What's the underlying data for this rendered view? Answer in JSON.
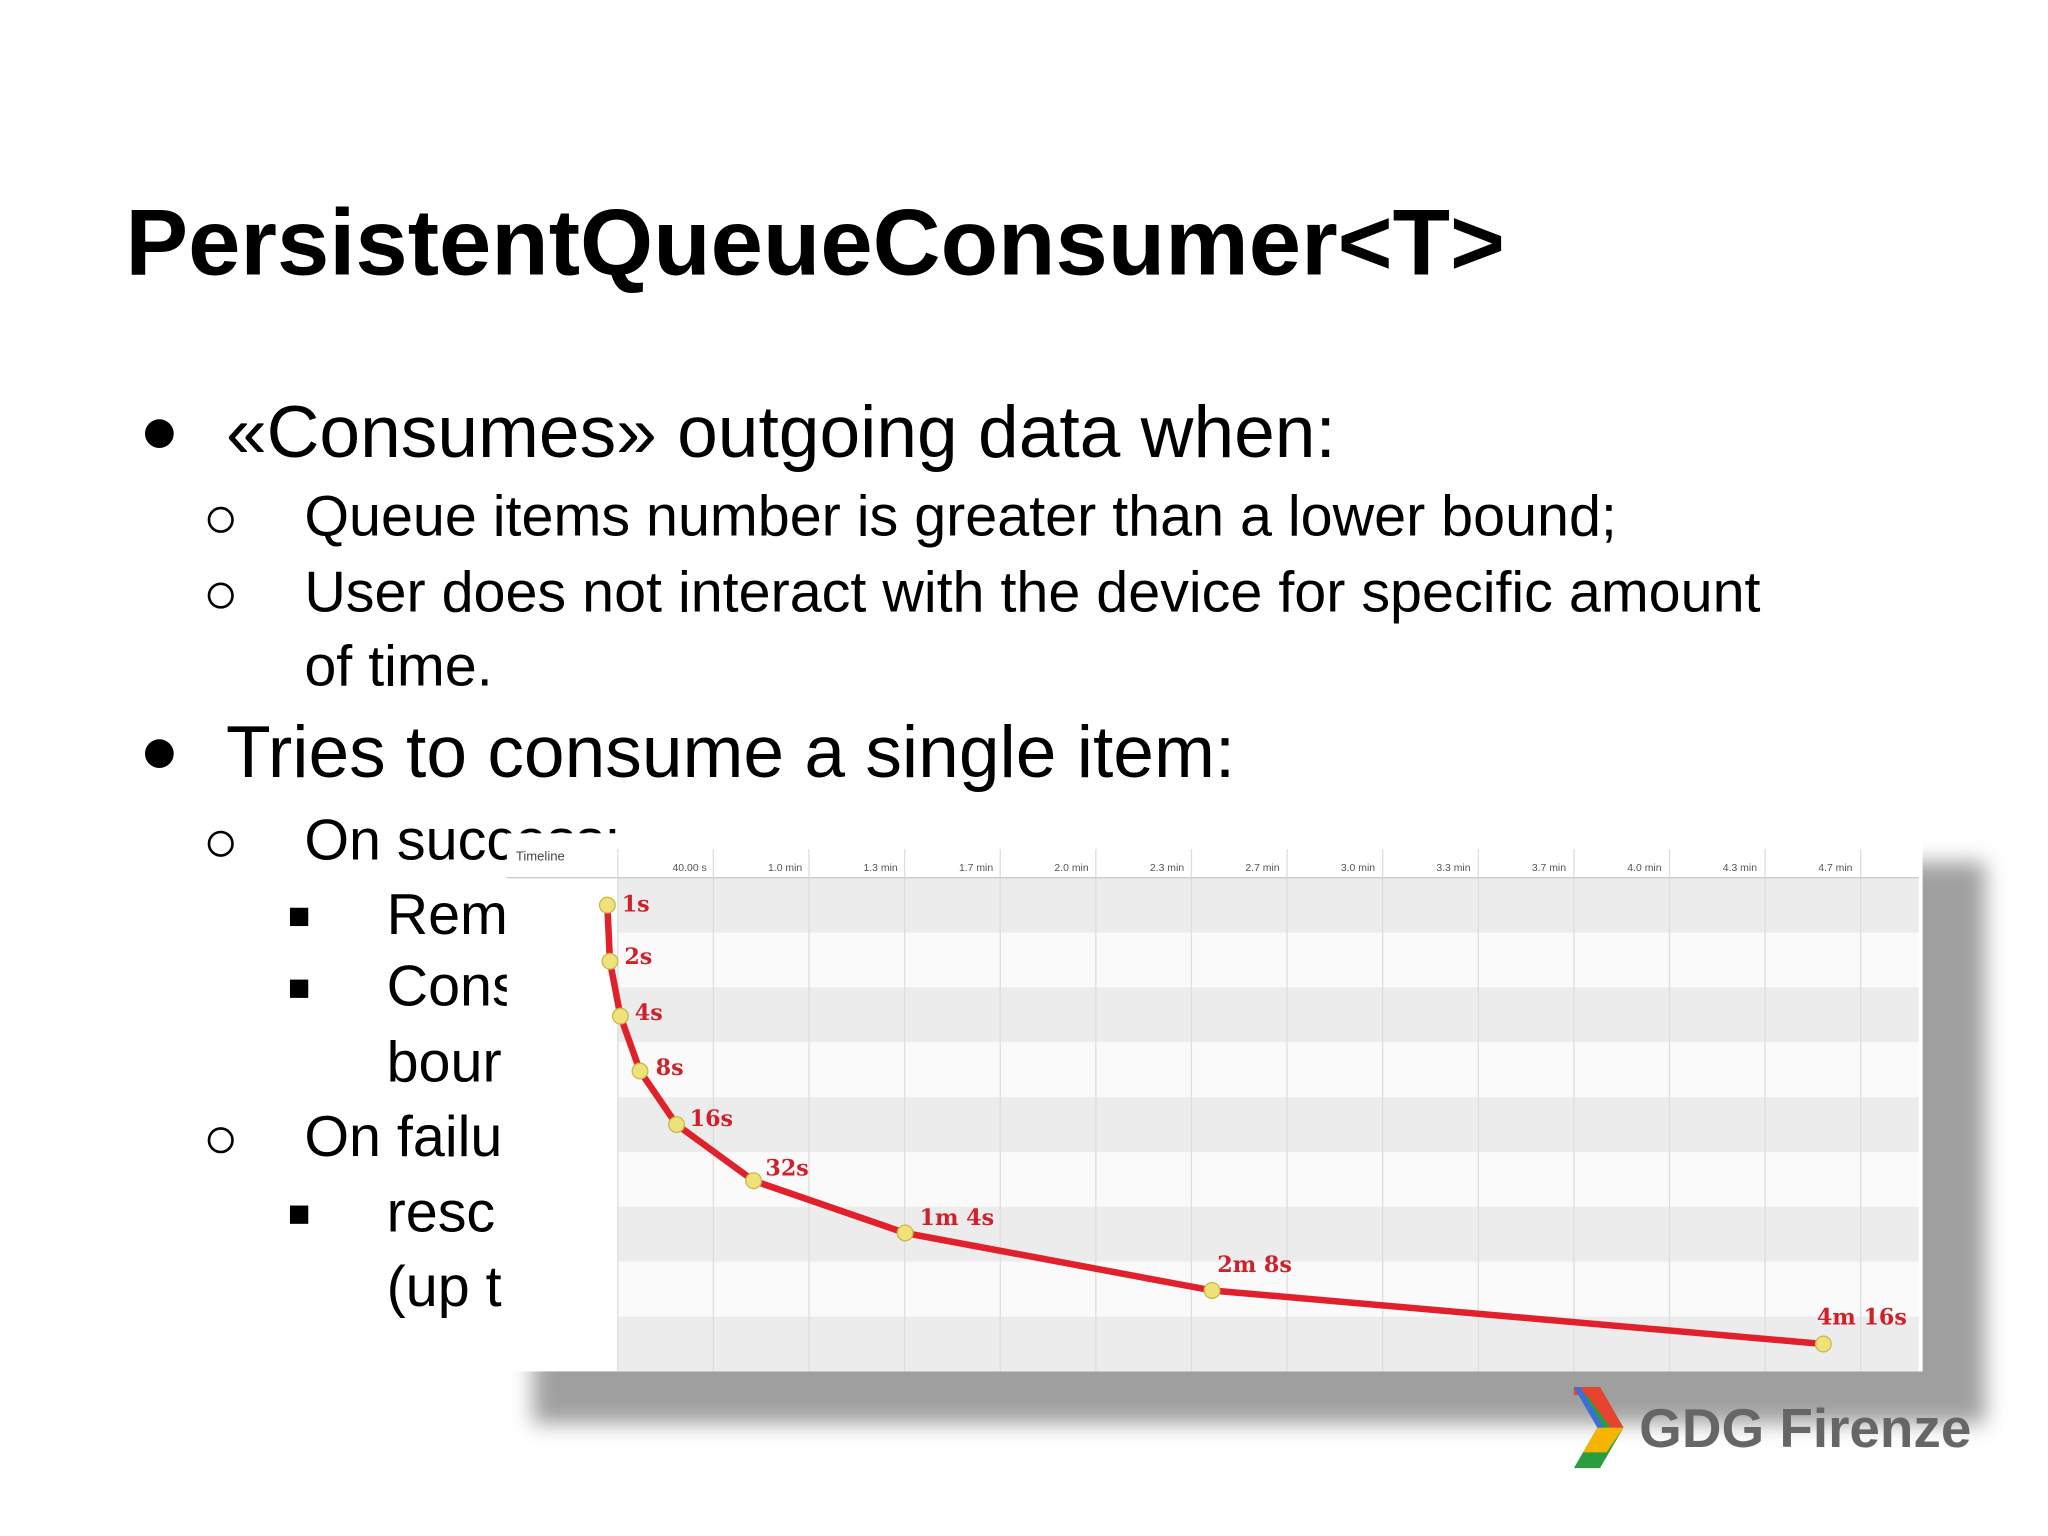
{
  "title": "PersistentQueueConsumer<T>",
  "bullets": [
    {
      "level": 1,
      "lines": [
        "«Consumes» outgoing data when:"
      ]
    },
    {
      "level": 2,
      "lines": [
        "Queue items number is greater than a lower bound;"
      ]
    },
    {
      "level": 2,
      "lines": [
        "User does not interact with the device for specific amount",
        "of time."
      ]
    },
    {
      "level": 1,
      "lines": [
        "Tries to consume a single item:"
      ]
    },
    {
      "level": 2,
      "lines": [
        "On success:"
      ]
    },
    {
      "level": 3,
      "lines": [
        "Rem"
      ]
    },
    {
      "level": 3,
      "lines": [
        "Cons",
        "bour"
      ]
    },
    {
      "level": 2,
      "lines": [
        "On failu"
      ]
    },
    {
      "level": 3,
      "lines": [
        "resc",
        "(up t"
      ]
    }
  ],
  "timeline": {
    "label": "Timeline",
    "ticks": [
      "40.00 s",
      "1.0 min",
      "1.3 min",
      "1.7 min",
      "2.0 min",
      "2.3 min",
      "2.7 min",
      "3.0 min",
      "3.3 min",
      "3.7 min",
      "4.0 min",
      "4.3 min",
      "4.7 min"
    ],
    "points": [
      "1s",
      "2s",
      "4s",
      "8s",
      "16s",
      "32s",
      "1m 4s",
      "2m 8s",
      "4m 16s"
    ]
  },
  "logo": "GDG Firenze"
}
